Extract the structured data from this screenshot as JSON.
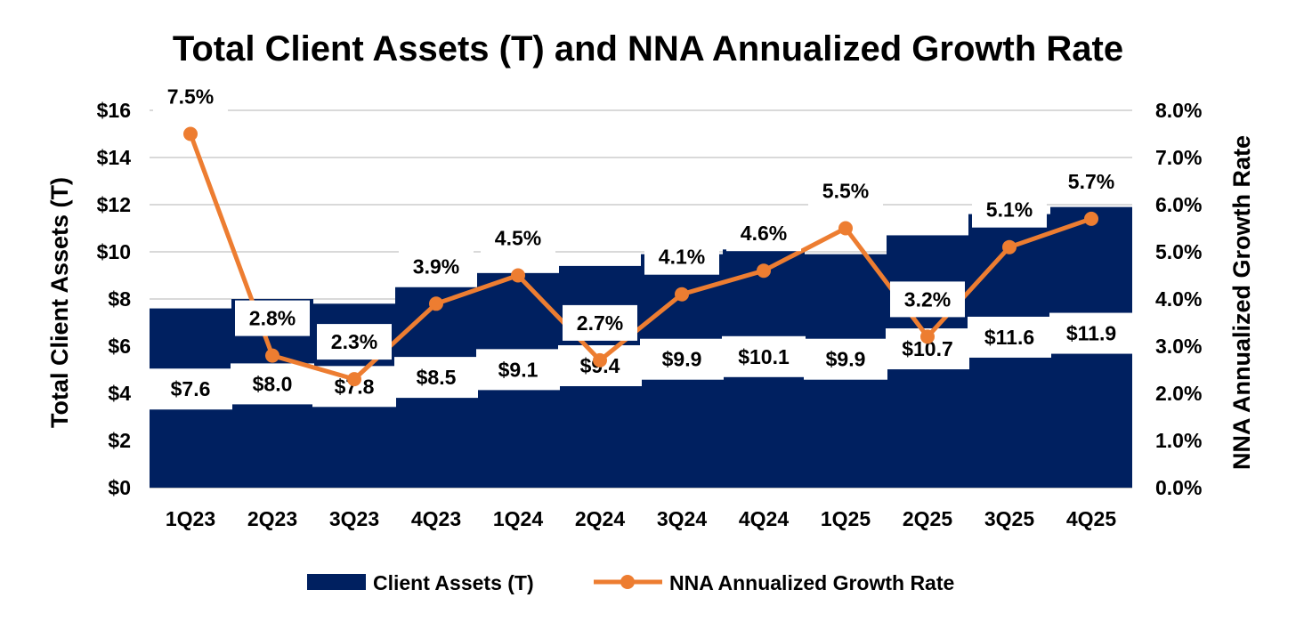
{
  "chart_data": {
    "type": "bar",
    "title": "Total Client Assets (T) and NNA Annualized Growth Rate",
    "categories": [
      "1Q23",
      "2Q23",
      "3Q23",
      "4Q23",
      "1Q24",
      "2Q24",
      "3Q24",
      "4Q24",
      "1Q25",
      "2Q25",
      "3Q25",
      "4Q25"
    ],
    "series": [
      {
        "name": "Client Assets (T)",
        "type": "bar",
        "axis": "left",
        "color": "#002060",
        "values": [
          7.6,
          8.0,
          7.8,
          8.5,
          9.1,
          9.4,
          9.9,
          10.1,
          9.9,
          10.7,
          11.6,
          11.9
        ],
        "labels": [
          "$7.6",
          "$8.0",
          "$7.8",
          "$8.5",
          "$9.1",
          "$9.4",
          "$9.9",
          "$10.1",
          "$9.9",
          "$10.7",
          "$11.6",
          "$11.9"
        ]
      },
      {
        "name": "NNA Annualized Growth Rate",
        "type": "line",
        "axis": "right",
        "color": "#ED7D31",
        "values": [
          7.5,
          2.8,
          2.3,
          3.9,
          4.5,
          2.7,
          4.1,
          4.6,
          5.5,
          3.2,
          5.1,
          5.7
        ],
        "labels": [
          "7.5%",
          "2.8%",
          "2.3%",
          "3.9%",
          "4.5%",
          "2.7%",
          "4.1%",
          "4.6%",
          "5.5%",
          "3.2%",
          "5.1%",
          "5.7%"
        ]
      }
    ],
    "ylabel": "Total Client Assets (T)",
    "y2label": "NNA Annualized Growth Rate",
    "ylim": [
      0,
      16
    ],
    "y2lim": [
      0,
      8
    ],
    "yticks": [
      "$0",
      "$2",
      "$4",
      "$6",
      "$8",
      "$10",
      "$12",
      "$14",
      "$16"
    ],
    "y2ticks": [
      "0.0%",
      "1.0%",
      "2.0%",
      "3.0%",
      "4.0%",
      "5.0%",
      "6.0%",
      "7.0%",
      "8.0%"
    ],
    "grid": true,
    "legend": "bottom"
  }
}
